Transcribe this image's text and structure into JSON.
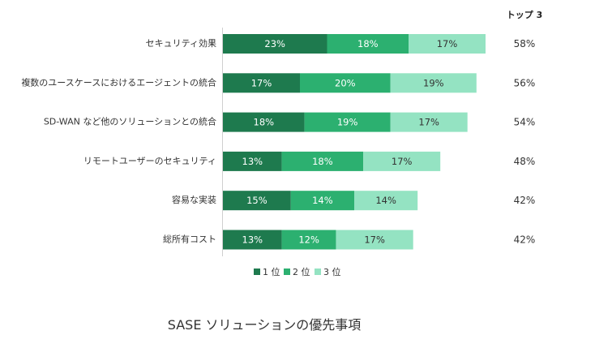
{
  "chart_data": {
    "type": "bar",
    "orientation": "horizontal",
    "stacked": true,
    "title": "SASE ソリューションの優先事項",
    "categories": [
      "セキュリティ効果",
      "複数のユースケースにおけるエージェントの統合",
      "SD-WAN など他のソリューションとの統合",
      "リモートユーザーのセキュリティ",
      "容易な実装",
      "総所有コスト"
    ],
    "series": [
      {
        "name": "1 位",
        "values": [
          23,
          17,
          18,
          13,
          15,
          13
        ],
        "labels": [
          "23%",
          "17%",
          "18%",
          "13%",
          "15%",
          "13%"
        ],
        "color": "#1e7a4e",
        "label_color": "#ffffff"
      },
      {
        "name": "2 位",
        "values": [
          18,
          20,
          19,
          18,
          14,
          12
        ],
        "labels": [
          "18%",
          "20%",
          "19%",
          "18%",
          "14%",
          "12%"
        ],
        "color": "#2cb070",
        "label_color": "#ffffff"
      },
      {
        "name": "3 位",
        "values": [
          17,
          19,
          17,
          17,
          14,
          17
        ],
        "labels": [
          "17%",
          "19%",
          "17%",
          "17%",
          "14%",
          "17%"
        ],
        "color": "#94e3c2",
        "label_color": "#333333"
      }
    ],
    "totals_header": "トップ 3",
    "totals": [
      "58%",
      "56%",
      "54%",
      "48%",
      "42%",
      "42%"
    ],
    "xlim": [
      0,
      58
    ],
    "grid": false,
    "legend_position": "bottom"
  }
}
